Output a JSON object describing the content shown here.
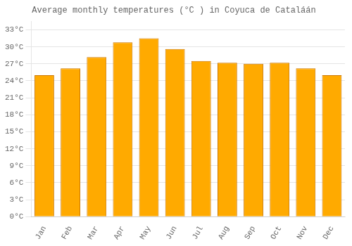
{
  "chart_data": {
    "type": "bar",
    "title": "Average monthly temperatures (°C ) in Coyuca de Cataláán",
    "categories": [
      "Jan",
      "Feb",
      "Mar",
      "Apr",
      "May",
      "Jun",
      "Jul",
      "Aug",
      "Sep",
      "Oct",
      "Nov",
      "Dec"
    ],
    "values": [
      25.0,
      26.2,
      28.2,
      30.8,
      31.5,
      29.6,
      27.5,
      27.2,
      27.0,
      27.2,
      26.2,
      25.0
    ],
    "color": "#FFAA00",
    "ylim": [
      0,
      34.5
    ],
    "yticks": [
      {
        "value": 0,
        "label": "0°C"
      },
      {
        "value": 3,
        "label": "3°C"
      },
      {
        "value": 6,
        "label": "6°C"
      },
      {
        "value": 9,
        "label": "9°C"
      },
      {
        "value": 12,
        "label": "12°C"
      },
      {
        "value": 15,
        "label": "15°C"
      },
      {
        "value": 18,
        "label": "18°C"
      },
      {
        "value": 21,
        "label": "21°C"
      },
      {
        "value": 24,
        "label": "24°C"
      },
      {
        "value": 27,
        "label": "27°C"
      },
      {
        "value": 30,
        "label": "30°C"
      },
      {
        "value": 33,
        "label": "33°C"
      }
    ],
    "grid": true
  }
}
